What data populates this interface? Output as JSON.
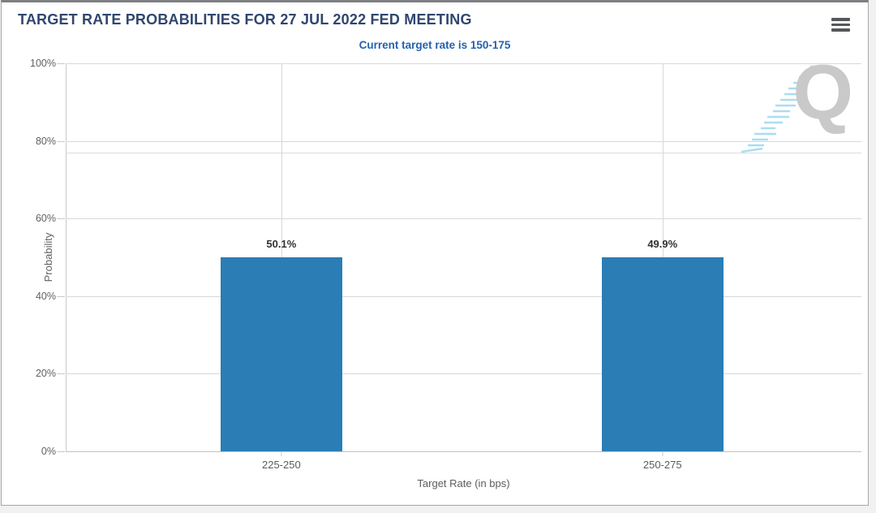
{
  "header": {
    "menu_icon": "hamburger-menu-icon"
  },
  "chart_data": {
    "type": "bar",
    "title": "TARGET RATE PROBABILITIES FOR 27 JUL 2022 FED MEETING",
    "subtitle": "Current target rate is 150-175",
    "categories": [
      "225-250",
      "250-275"
    ],
    "values": [
      50.1,
      49.9
    ],
    "value_labels": [
      "50.1%",
      "49.9%"
    ],
    "xlabel": "Target Rate (in bps)",
    "ylabel": "Probability",
    "ylim": [
      0,
      100
    ],
    "yticks": [
      0,
      20,
      40,
      60,
      80,
      100
    ],
    "ytick_labels": [
      "0%",
      "20%",
      "40%",
      "60%",
      "80%",
      "100%"
    ],
    "grid": true,
    "legend": "none",
    "bar_color": "#2a7db5",
    "title_color": "#30466e",
    "subtitle_color": "#2362ae",
    "watermark_letter": "Q"
  }
}
